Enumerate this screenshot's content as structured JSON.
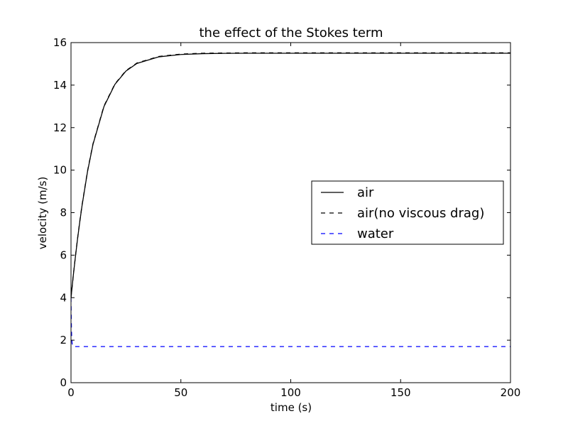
{
  "chart_data": {
    "type": "line",
    "title": "the effect of the Stokes term",
    "xlabel": "time (s)",
    "ylabel": "velocity (m/s)",
    "xlim": [
      0,
      200
    ],
    "ylim": [
      0,
      16
    ],
    "xticks": [
      0,
      50,
      100,
      150,
      200
    ],
    "yticks": [
      0,
      2,
      4,
      6,
      8,
      10,
      12,
      14,
      16
    ],
    "xtick_labels": [
      "0",
      "50",
      "100",
      "150",
      "200"
    ],
    "ytick_labels": [
      "0",
      "2",
      "4",
      "6",
      "8",
      "10",
      "12",
      "14",
      "16"
    ],
    "grid": false,
    "legend_position": "center-right",
    "series": [
      {
        "name": "air",
        "color": "#000000",
        "style": "solid",
        "x": [
          0,
          1,
          2,
          3,
          4,
          5,
          7.5,
          10,
          15,
          20,
          25,
          30,
          40,
          50,
          60,
          70,
          80,
          100,
          125,
          150,
          175,
          200
        ],
        "y": [
          4,
          5.0,
          5.92,
          6.78,
          7.57,
          8.31,
          9.92,
          11.21,
          12.99,
          14.04,
          14.66,
          15.02,
          15.33,
          15.44,
          15.48,
          15.495,
          15.5,
          15.5,
          15.5,
          15.5,
          15.5,
          15.5
        ]
      },
      {
        "name": "air(no viscous drag)",
        "color": "#000000",
        "style": "dashed",
        "x": [
          0,
          1,
          2,
          3,
          4,
          5,
          7.5,
          10,
          15,
          20,
          25,
          30,
          40,
          50,
          60,
          70,
          80,
          100,
          125,
          150,
          175,
          200
        ],
        "y": [
          4,
          5.0,
          5.94,
          6.8,
          7.6,
          8.34,
          9.95,
          11.24,
          13.02,
          14.06,
          14.68,
          15.04,
          15.35,
          15.46,
          15.5,
          15.51,
          15.52,
          15.52,
          15.52,
          15.52,
          15.52,
          15.52
        ]
      },
      {
        "name": "water",
        "color": "#0000ff",
        "style": "dashed",
        "x": [
          0,
          0.1,
          0.2,
          0.3,
          0.5,
          0.8,
          1.2,
          2,
          5,
          50,
          100,
          150,
          200
        ],
        "y": [
          4,
          3.2,
          2.55,
          2.15,
          1.85,
          1.72,
          1.7,
          1.7,
          1.7,
          1.7,
          1.7,
          1.7,
          1.7
        ]
      }
    ]
  }
}
